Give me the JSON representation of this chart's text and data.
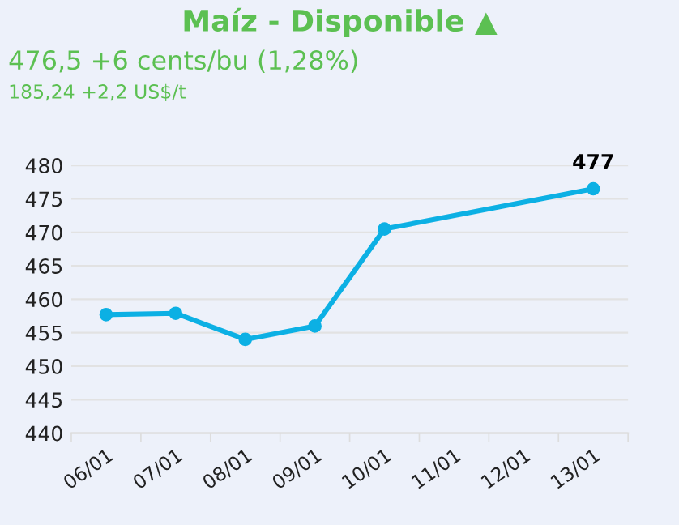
{
  "chart_data": {
    "type": "line",
    "title": "Maíz - Disponible ▲",
    "subtitle": "476,5 +6 cents/bu (1,28%)",
    "annotations": [
      "185,24 +2,2 US$/t"
    ],
    "categories": [
      "06/01",
      "07/01",
      "08/01",
      "09/01",
      "10/01",
      "11/01",
      "12/01",
      "13/01"
    ],
    "series": [
      {
        "color": "#0cb0e4",
        "values": [
          457.7,
          457.9,
          454.0,
          456.0,
          470.5,
          null,
          null,
          476.5
        ],
        "value_labels": [
          null,
          null,
          null,
          null,
          null,
          null,
          null,
          "477"
        ]
      }
    ],
    "ylim": [
      440,
      480
    ],
    "yticks": [
      440,
      445,
      450,
      455,
      460,
      465,
      470,
      475,
      480
    ],
    "grid": "y",
    "marker": "circle",
    "line_style": "solid"
  }
}
